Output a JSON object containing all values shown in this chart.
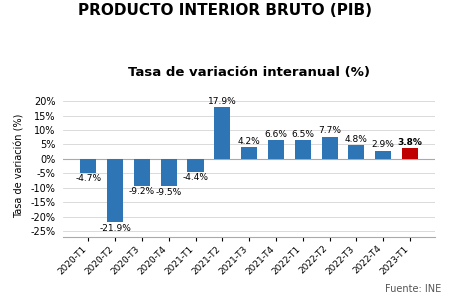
{
  "title": "PRODUCTO INTERIOR BRUTO (PIB)",
  "subtitle": "Tasa de variación interanual (%)",
  "ylabel": "Tasa de variación (%)",
  "source": "Fuente: INE",
  "categories": [
    "2020-T1",
    "2020-T2",
    "2020-T3",
    "2020-T4",
    "2021-T1",
    "2021-T2",
    "2021-T3",
    "2021-T4",
    "2022-T1",
    "2022-T2",
    "2022-T3",
    "2022-T4",
    "2023-T1"
  ],
  "values": [
    -4.7,
    -21.9,
    -9.2,
    -9.5,
    -4.4,
    17.9,
    4.2,
    6.6,
    6.5,
    7.7,
    4.8,
    2.9,
    3.8
  ],
  "bar_colors": [
    "#2E75B6",
    "#2E75B6",
    "#2E75B6",
    "#2E75B6",
    "#2E75B6",
    "#2E75B6",
    "#2E75B6",
    "#2E75B6",
    "#2E75B6",
    "#2E75B6",
    "#2E75B6",
    "#2E75B6",
    "#C00000"
  ],
  "ylim": [
    -27,
    22
  ],
  "yticks": [
    -25,
    -20,
    -15,
    -10,
    -5,
    0,
    5,
    10,
    15,
    20
  ],
  "ytick_labels": [
    "-25%",
    "-20%",
    "-15%",
    "-10%",
    "-5%",
    "0%",
    "5%",
    "10%",
    "15%",
    "20%"
  ],
  "title_fontsize": 11,
  "subtitle_fontsize": 9.5,
  "label_fontsize": 6.5,
  "ylabel_fontsize": 7,
  "xtick_fontsize": 6.5,
  "ytick_fontsize": 7,
  "source_fontsize": 7,
  "background_color": "#FFFFFF",
  "bar_width": 0.6
}
